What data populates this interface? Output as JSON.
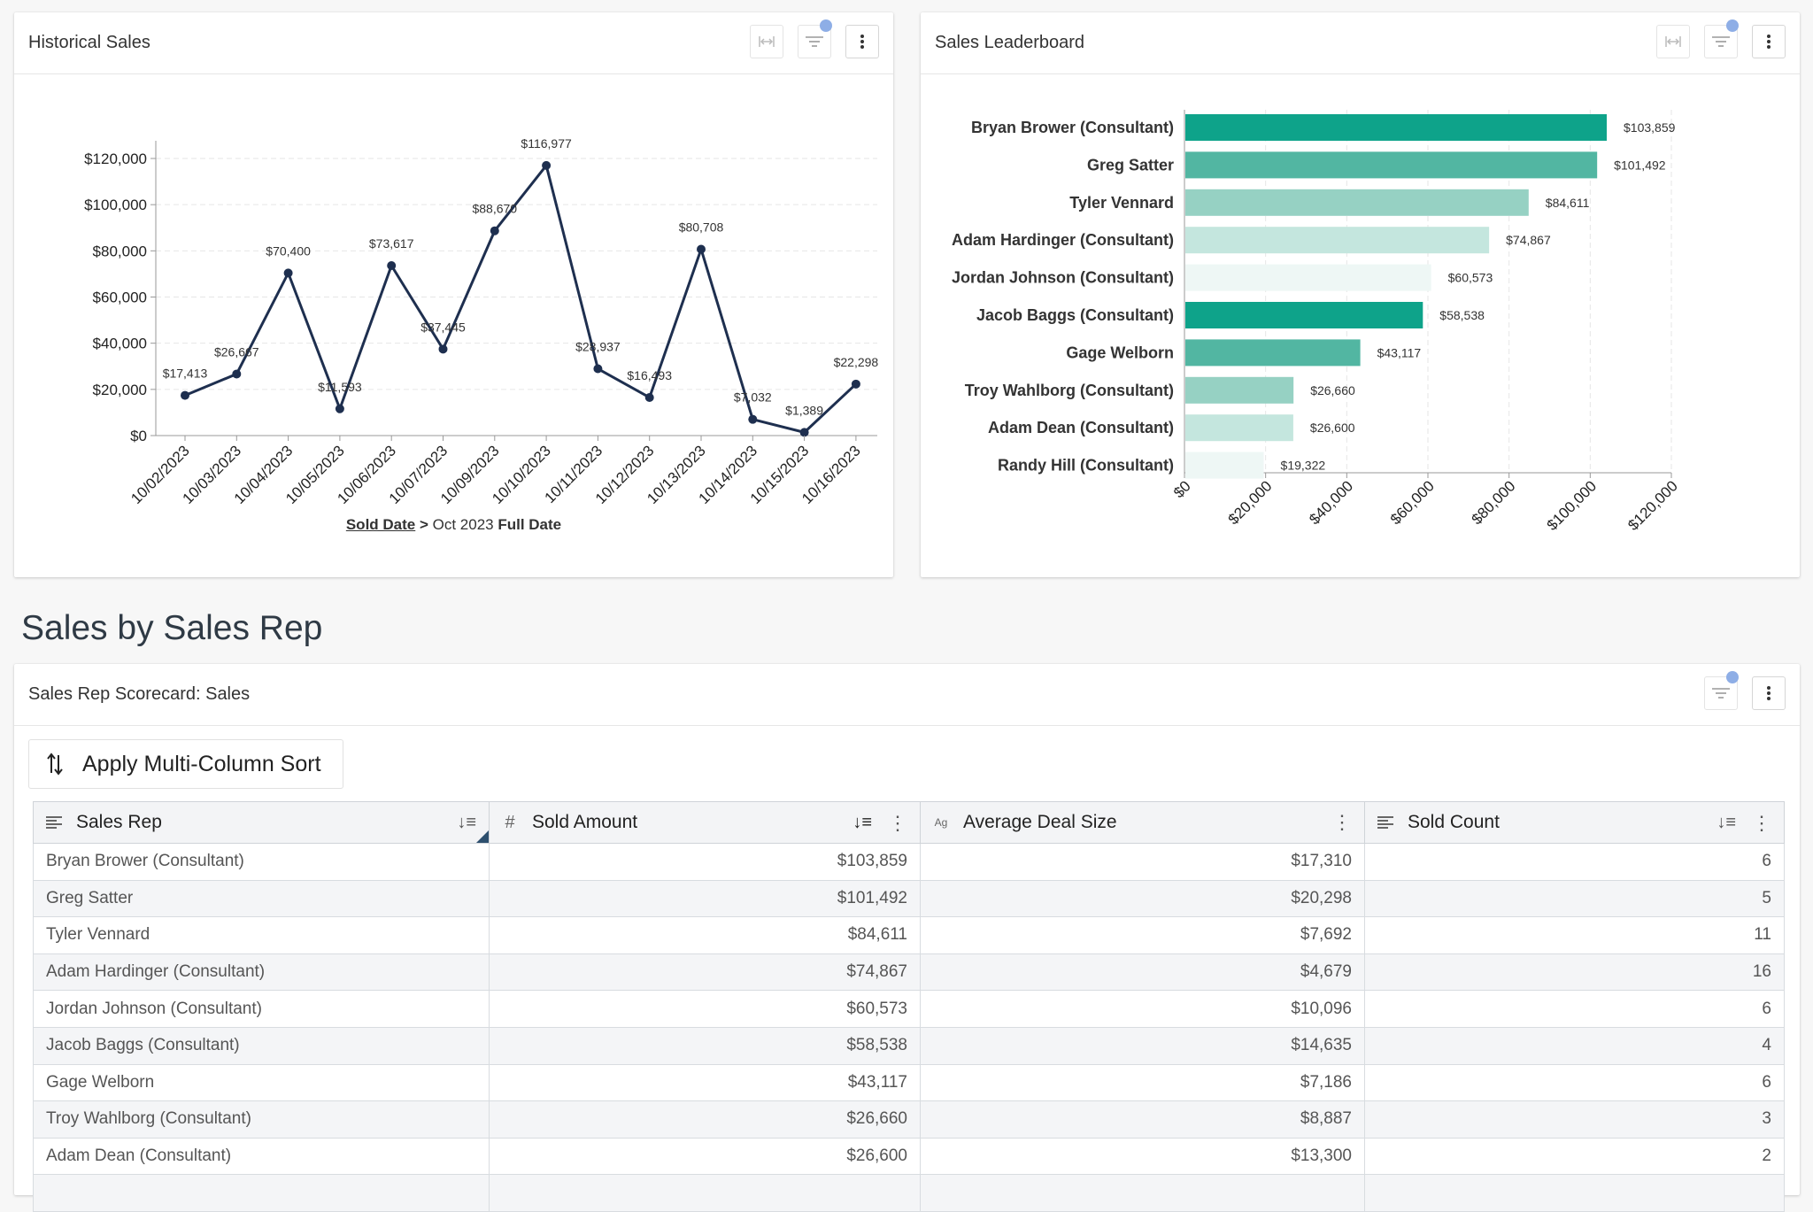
{
  "historical": {
    "title": "Historical Sales",
    "xaxis_caption": {
      "field": "Sold Date",
      "sep": " > ",
      "grain": "Oct 2023 ",
      "bold": "Full Date"
    }
  },
  "leaderboard": {
    "title": "Sales Leaderboard"
  },
  "section_title": "Sales by Sales Rep",
  "scorecard": {
    "title": "Sales Rep Scorecard: Sales",
    "sort_button": "Apply Multi-Column Sort",
    "columns": [
      "Sales Rep",
      "Sold Amount",
      "Average Deal Size",
      "Sold Count"
    ],
    "rows": [
      [
        "Bryan Brower (Consultant)",
        "$103,859",
        "$17,310",
        "6"
      ],
      [
        "Greg Satter",
        "$101,492",
        "$20,298",
        "5"
      ],
      [
        "Tyler Vennard",
        "$84,611",
        "$7,692",
        "11"
      ],
      [
        "Adam Hardinger (Consultant)",
        "$74,867",
        "$4,679",
        "16"
      ],
      [
        "Jordan Johnson (Consultant)",
        "$60,573",
        "$10,096",
        "6"
      ],
      [
        "Jacob Baggs (Consultant)",
        "$58,538",
        "$14,635",
        "4"
      ],
      [
        "Gage Welborn",
        "$43,117",
        "$7,186",
        "6"
      ],
      [
        "Troy Wahlborg (Consultant)",
        "$26,660",
        "$8,887",
        "3"
      ],
      [
        "Adam Dean (Consultant)",
        "$26,600",
        "$13,300",
        "2"
      ]
    ]
  },
  "colors": {
    "line": "#1e2f4f",
    "accent_dot": "#8eaee6",
    "bar_palette": [
      "#0ea38a",
      "#52b6a2",
      "#96d1c3",
      "#c4e6de",
      "#eef7f5"
    ]
  },
  "chart_data": [
    {
      "type": "line",
      "title": "Historical Sales",
      "xlabel": "Sold Date > Oct 2023 Full Date",
      "ylabel": "",
      "x": [
        "10/02/2023",
        "10/03/2023",
        "10/04/2023",
        "10/05/2023",
        "10/06/2023",
        "10/07/2023",
        "10/09/2023",
        "10/10/2023",
        "10/11/2023",
        "10/12/2023",
        "10/13/2023",
        "10/14/2023",
        "10/15/2023",
        "10/16/2023"
      ],
      "values": [
        17413,
        26667,
        70400,
        11593,
        73617,
        37445,
        88670,
        116977,
        28937,
        16493,
        80708,
        7032,
        1389,
        22298
      ],
      "labels": [
        "$17,413",
        "$26,667",
        "$70,400",
        "$11,593",
        "$73,617",
        "$37,445",
        "$88,670",
        "$116,977",
        "$28,937",
        "$16,493",
        "$80,708",
        "$7,032",
        "$1,389",
        "$22,298"
      ],
      "ylim": [
        0,
        120000
      ],
      "yticks": [
        "$0",
        "$20,000",
        "$40,000",
        "$60,000",
        "$80,000",
        "$100,000",
        "$120,000"
      ],
      "grid": true
    },
    {
      "type": "bar",
      "orientation": "horizontal",
      "title": "Sales Leaderboard",
      "categories": [
        "Bryan Brower (Consultant)",
        "Greg Satter",
        "Tyler Vennard",
        "Adam Hardinger (Consultant)",
        "Jordan Johnson (Consultant)",
        "Jacob Baggs (Consultant)",
        "Gage Welborn",
        "Troy Wahlborg (Consultant)",
        "Adam Dean (Consultant)",
        "Randy Hill (Consultant)"
      ],
      "values": [
        103859,
        101492,
        84611,
        74867,
        60573,
        58538,
        43117,
        26660,
        26600,
        19322
      ],
      "labels": [
        "$103,859",
        "$101,492",
        "$84,611",
        "$74,867",
        "$60,573",
        "$58,538",
        "$43,117",
        "$26,660",
        "$26,600",
        "$19,322"
      ],
      "xlim": [
        0,
        120000
      ],
      "xticks": [
        "$0",
        "$20,000",
        "$40,000",
        "$60,000",
        "$80,000",
        "$100,000",
        "$120,000"
      ],
      "grid": true
    }
  ]
}
